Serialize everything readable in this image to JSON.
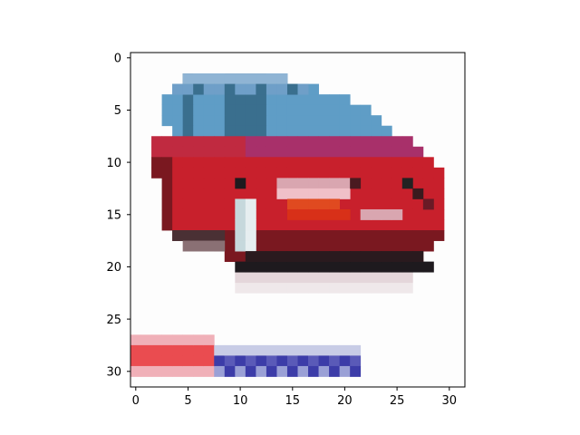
{
  "image": {
    "subject": "pixelated 32x32 image of a red car with a blue-tinted windshield",
    "grid_size": [
      32,
      32
    ],
    "palette": {
      "background": "#fdfdfd",
      "body_red": "#c8202c",
      "body_dark": "#7a1820",
      "window_blue": "#5f9dc6",
      "window_dark": "#3a6f8e",
      "tire_black": "#1e1a1e",
      "headlight": "#c6d8dc",
      "grille_light": "#d9a6b0",
      "orange": "#e04a20",
      "stripe_red": "#ea4c50",
      "stripe_pink": "#f0b0b8",
      "stripe_blue": "#3c3ca8",
      "stripe_lightblue": "#9aa0d6"
    }
  },
  "axes": {
    "x_ticks": [
      "0",
      "5",
      "10",
      "15",
      "20",
      "25",
      "30"
    ],
    "y_ticks": [
      "0",
      "5",
      "10",
      "15",
      "20",
      "25",
      "30"
    ]
  }
}
